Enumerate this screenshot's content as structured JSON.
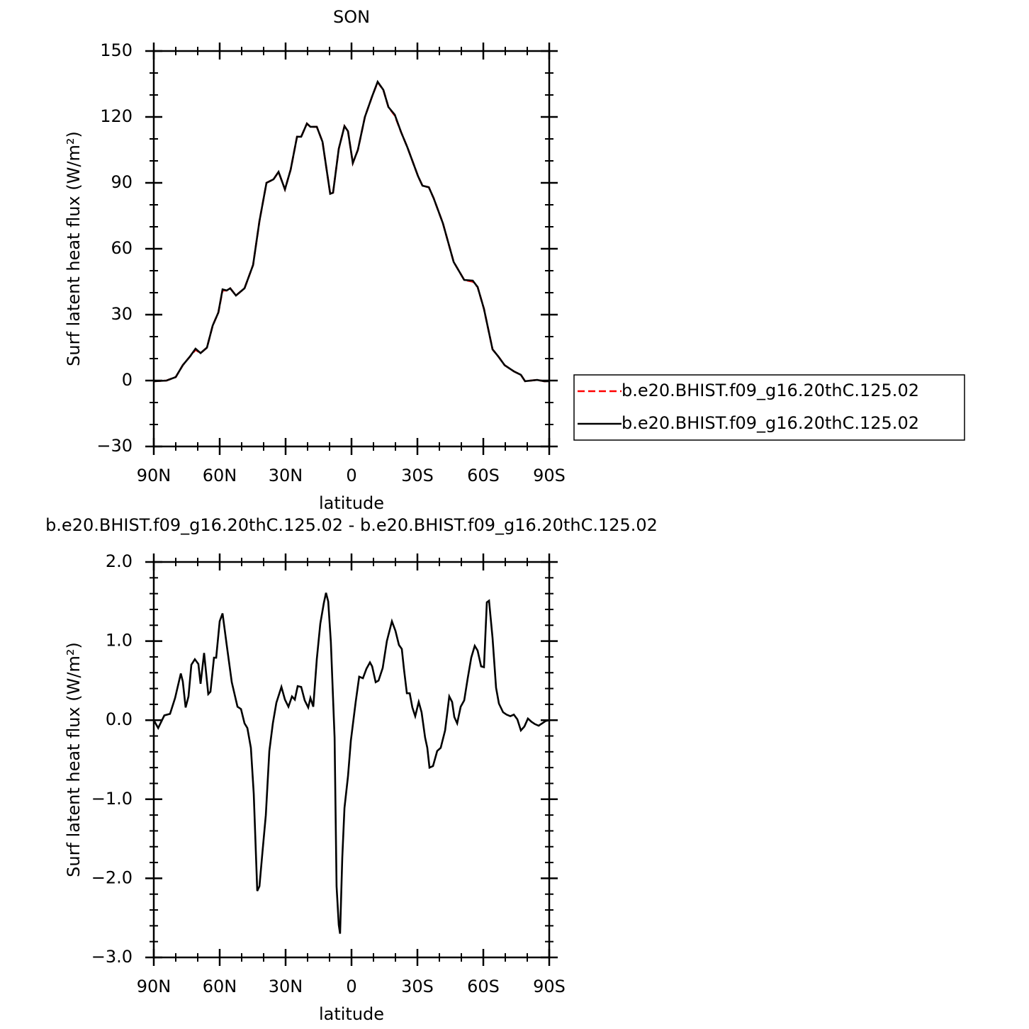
{
  "chart_data": [
    {
      "type": "line",
      "title": "SON",
      "x_label": "latitude",
      "y_label": "Surf latent heat flux (W/m²)",
      "xlim": [
        90,
        -90
      ],
      "xticks": [
        {
          "value": 90,
          "label": "90N"
        },
        {
          "value": 60,
          "label": "60N"
        },
        {
          "value": 30,
          "label": "30N"
        },
        0,
        {
          "value": -30,
          "label": "30S"
        },
        {
          "value": -60,
          "label": "60S"
        },
        {
          "value": -90,
          "label": "90S"
        }
      ],
      "xminorticks": [
        80,
        70,
        50,
        40,
        20,
        10,
        -10,
        -20,
        -40,
        -50,
        -70,
        -80
      ],
      "ylim": [
        -30,
        150
      ],
      "yticks": [
        {
          "value": -30,
          "label": "−30"
        },
        0,
        30,
        60,
        90,
        120,
        150
      ],
      "yminorticks": [
        -20,
        -10,
        10,
        20,
        40,
        50,
        70,
        80,
        100,
        110,
        130,
        140
      ],
      "legend": "right",
      "x": [
        90,
        84.2,
        80,
        76.8,
        73.5,
        71,
        68.7,
        65.8,
        63.2,
        60.6,
        58.7,
        56.8,
        55.2,
        52.6,
        48.7,
        44.8,
        41.9,
        38.7,
        35.5,
        33.2,
        30.3,
        27.7,
        24.8,
        22.9,
        20.3,
        18.7,
        15.8,
        13.2,
        9.7,
        8.4,
        5.8,
        3.2,
        1.6,
        -0.6,
        -2.9,
        -6.1,
        -9.4,
        -11.9,
        -14.5,
        -16.8,
        -19.7,
        -22.6,
        -25.5,
        -30.3,
        -32.3,
        -35.2,
        -37.4,
        -41.6,
        -46.5,
        -51.3,
        -55.2,
        -57.4,
        -60.3,
        -64.2,
        -66.8,
        -69.7,
        -73.9,
        -77.1,
        -79,
        -84.5,
        -87.7,
        -90
      ],
      "series": [
        {
          "name": "b.e20.BHIST.f09_g16.20thC.125.02",
          "color": "#ff0000",
          "line_style": "dashed",
          "values": [
            -0.3,
            0,
            1.6,
            7,
            11,
            14,
            12.5,
            15,
            25,
            31,
            41,
            41,
            42,
            38.7,
            42,
            52.6,
            72.6,
            90,
            91.6,
            95,
            87,
            96,
            111,
            111,
            117,
            115.5,
            115.5,
            108.7,
            85,
            85.5,
            105.5,
            115.8,
            113.5,
            99,
            105,
            120,
            129.4,
            135.8,
            132.3,
            124.5,
            120.6,
            113,
            106,
            93,
            88.7,
            88,
            83,
            71.6,
            54,
            45.8,
            45,
            42.6,
            32.6,
            14.2,
            11,
            7,
            4.2,
            2.6,
            -0.3,
            0.3,
            -0.3,
            -0.3
          ]
        },
        {
          "name": "b.e20.BHIST.f09_g16.20thC.125.02",
          "color": "#000000",
          "line_style": "solid",
          "values": [
            -0.3,
            0,
            1.6,
            7,
            11,
            14.5,
            12.5,
            15,
            25,
            31,
            41.5,
            41,
            42,
            38.7,
            42,
            52.6,
            72.6,
            90,
            91.6,
            95,
            87,
            96,
            111,
            111,
            117,
            115.5,
            115.5,
            108.7,
            85,
            85.5,
            105.5,
            115.8,
            113.5,
            99,
            105,
            120,
            129.4,
            136,
            132.3,
            124.5,
            121,
            113,
            106,
            93,
            88.7,
            88,
            83,
            71.6,
            54,
            45.8,
            45.5,
            42.6,
            32.6,
            14.2,
            11,
            7,
            4.2,
            2.6,
            -0.3,
            0.3,
            -0.3,
            -0.3
          ]
        }
      ]
    },
    {
      "type": "line",
      "title": "b.e20.BHIST.f09_g16.20thC.125.02 - b.e20.BHIST.f09_g16.20thC.125.02",
      "x_label": "latitude",
      "y_label": "Surf latent heat flux (W/m²)",
      "xlim": [
        90,
        -90
      ],
      "xticks": [
        {
          "value": 90,
          "label": "90N"
        },
        {
          "value": 60,
          "label": "60N"
        },
        {
          "value": 30,
          "label": "30N"
        },
        0,
        {
          "value": -30,
          "label": "30S"
        },
        {
          "value": -60,
          "label": "60S"
        },
        {
          "value": -90,
          "label": "90S"
        }
      ],
      "xminorticks": [
        80,
        70,
        50,
        40,
        20,
        10,
        -10,
        -20,
        -40,
        -50,
        -70,
        -80
      ],
      "ylim": [
        -3,
        2
      ],
      "yticks": [
        {
          "value": -3,
          "label": "−3.0"
        },
        {
          "value": -2,
          "label": "−2.0"
        },
        {
          "value": -1,
          "label": "−1.0"
        },
        {
          "value": 0,
          "label": "0.0"
        },
        {
          "value": 1,
          "label": "1.0"
        },
        {
          "value": 2,
          "label": "2.0"
        }
      ],
      "yminorticks": [
        -2.8,
        -2.6,
        -2.4,
        -2.2,
        -1.8,
        -1.6,
        -1.4,
        -1.2,
        -0.8,
        -0.6,
        -0.4,
        -0.2,
        0.2,
        0.4,
        0.6,
        0.8,
        1.2,
        1.4,
        1.6,
        1.8
      ],
      "x": [
        90,
        88,
        85.2,
        82.6,
        80.3,
        77.7,
        76.8,
        75.5,
        74.2,
        72.9,
        71.3,
        69.7,
        68.7,
        67.1,
        65.2,
        64.2,
        62.6,
        61.6,
        60,
        58.7,
        56.8,
        54.5,
        51.9,
        50.3,
        48.7,
        47.4,
        45.8,
        44.5,
        42.9,
        41.9,
        40.6,
        39,
        37.4,
        35.8,
        34.2,
        31.9,
        30.3,
        28.7,
        27.1,
        25.8,
        24.5,
        22.9,
        21.3,
        19.7,
        18.7,
        17.4,
        15.8,
        14.2,
        12.6,
        11.6,
        10.6,
        9.4,
        7.7,
        6.8,
        5.8,
        5.2,
        4.2,
        3.2,
        1.6,
        0.3,
        -1.9,
        -3.5,
        -5.2,
        -6.8,
        -8.4,
        -9.4,
        -11,
        -12.3,
        -14.2,
        -16.1,
        -18.4,
        -20,
        -21.6,
        -22.9,
        -23.9,
        -25.2,
        -26.5,
        -27.7,
        -29,
        -30.6,
        -31.9,
        -33.5,
        -34.5,
        -35.5,
        -37.1,
        -39,
        -40.6,
        -42.6,
        -44.5,
        -45.8,
        -46.8,
        -48.1,
        -49.7,
        -51.3,
        -52.9,
        -54.5,
        -56.1,
        -57.4,
        -59,
        -60.3,
        -61.6,
        -62.6,
        -64.2,
        -65.8,
        -67.1,
        -69,
        -70.6,
        -72.3,
        -73.9,
        -75.5,
        -77.1,
        -78.7,
        -80.3,
        -81.9,
        -83.5,
        -85.2,
        -86.8,
        -88.4,
        -90
      ],
      "series": [
        {
          "color": "#000000",
          "line_style": "solid",
          "values": [
            0,
            -0.1,
            0.06,
            0.08,
            0.28,
            0.59,
            0.49,
            0.16,
            0.3,
            0.7,
            0.77,
            0.71,
            0.46,
            0.85,
            0.33,
            0.36,
            0.79,
            0.79,
            1.25,
            1.35,
            0.95,
            0.48,
            0.17,
            0.14,
            -0.04,
            -0.1,
            -0.35,
            -0.93,
            -2.16,
            -2.1,
            -1.69,
            -1.2,
            -0.39,
            -0.04,
            0.22,
            0.42,
            0.26,
            0.17,
            0.3,
            0.26,
            0.43,
            0.42,
            0.25,
            0.16,
            0.28,
            0.17,
            0.77,
            1.22,
            1.48,
            1.61,
            1.5,
            0.99,
            -0.22,
            -2.1,
            -2.59,
            -2.7,
            -1.74,
            -1.11,
            -0.71,
            -0.26,
            0.23,
            0.55,
            0.53,
            0.65,
            0.73,
            0.68,
            0.48,
            0.5,
            0.66,
            1.0,
            1.25,
            1.13,
            0.95,
            0.9,
            0.64,
            0.34,
            0.34,
            0.16,
            0.05,
            0.23,
            0.1,
            -0.22,
            -0.35,
            -0.6,
            -0.58,
            -0.39,
            -0.35,
            -0.13,
            0.3,
            0.23,
            0.04,
            -0.04,
            0.17,
            0.25,
            0.53,
            0.79,
            0.94,
            0.88,
            0.68,
            0.67,
            1.49,
            1.51,
            1.04,
            0.41,
            0.21,
            0.1,
            0.07,
            0.05,
            0.07,
            0.01,
            -0.13,
            -0.08,
            0.02,
            -0.02,
            -0.05,
            -0.07,
            -0.04,
            -0.01,
            0
          ]
        }
      ]
    }
  ]
}
